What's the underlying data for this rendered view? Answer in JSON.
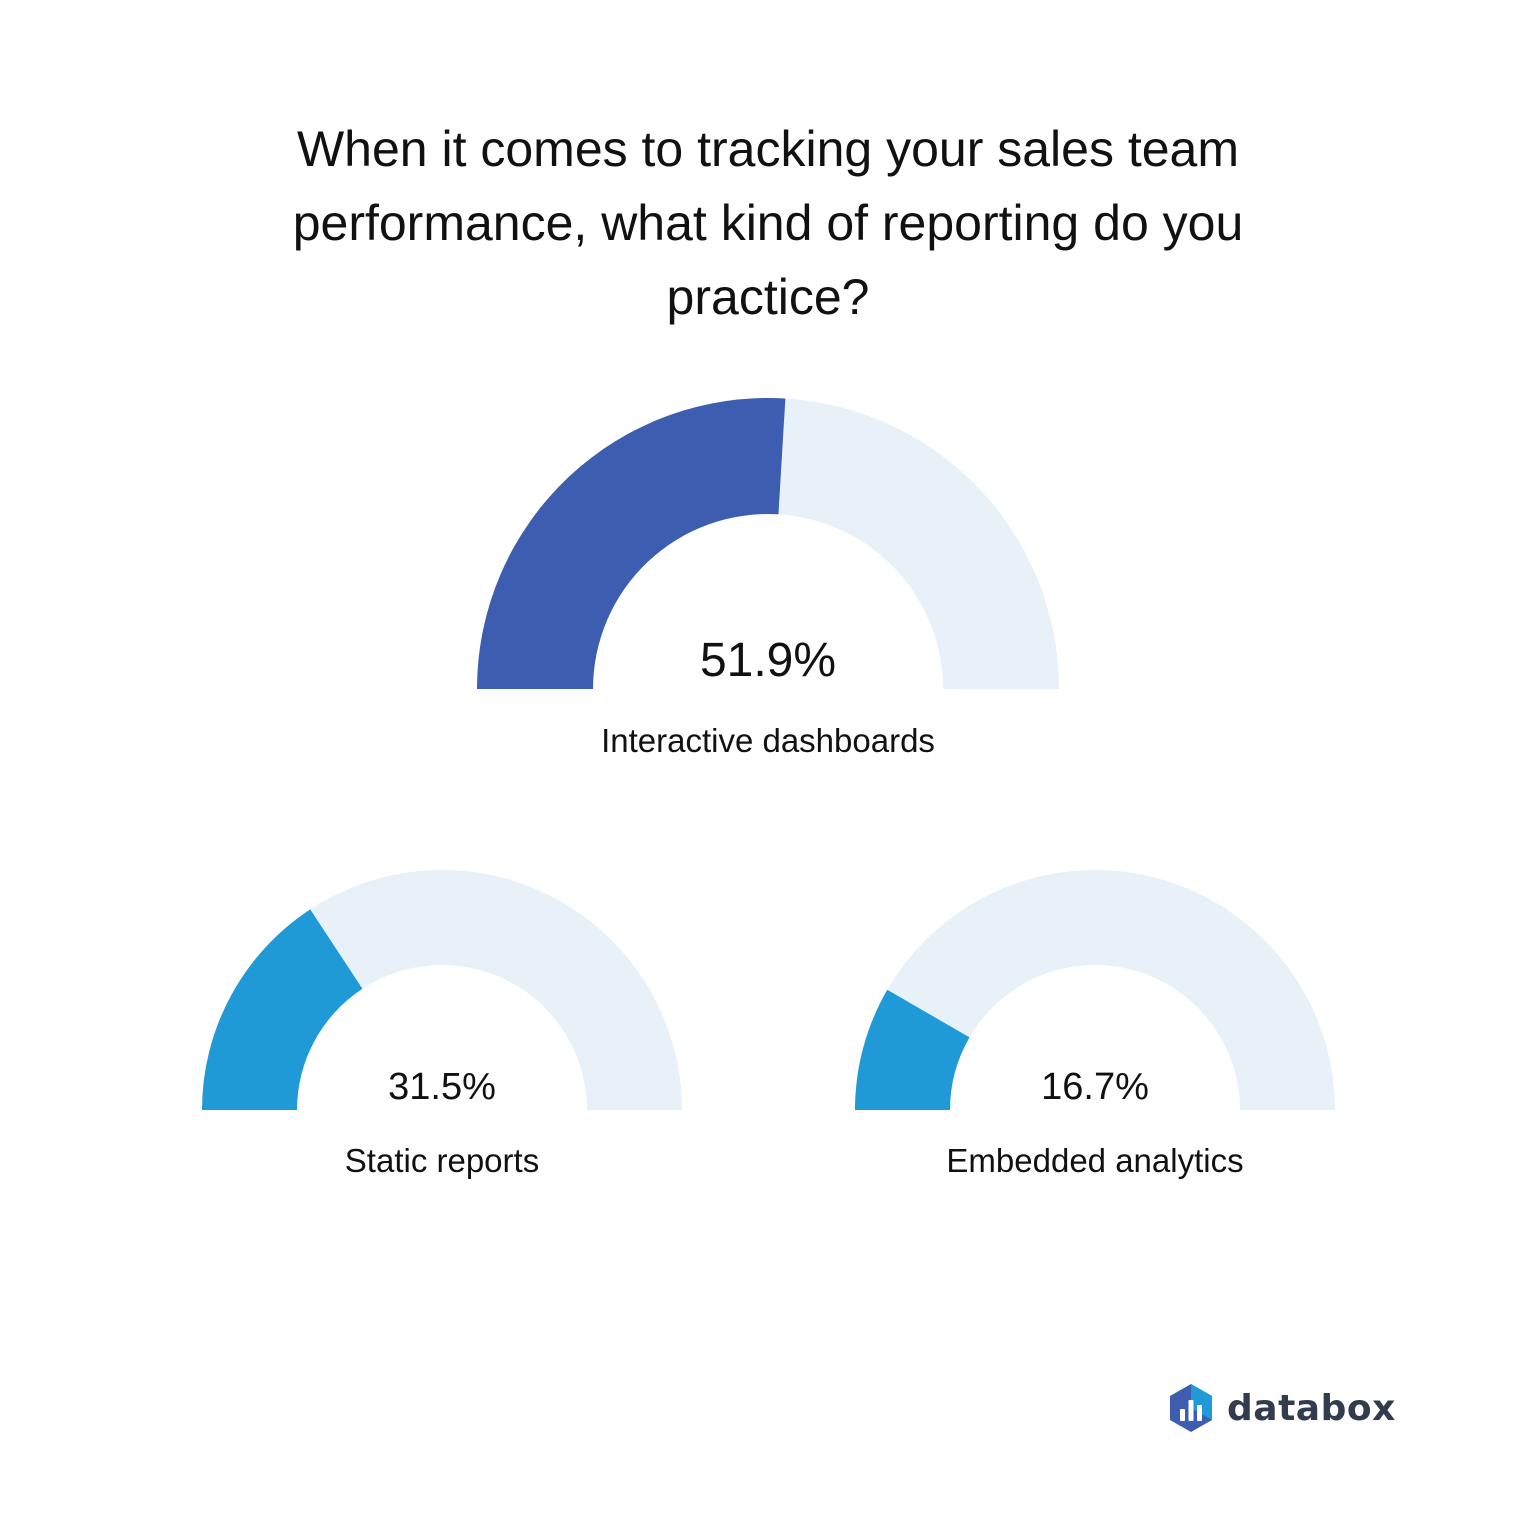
{
  "title": "When it comes to tracking your sales team performance, what kind of reporting do you practice?",
  "chart_data": [
    {
      "type": "gauge",
      "label": "Interactive dashboards",
      "value": 51.9,
      "value_text": "51.9%",
      "range": [
        0,
        100
      ],
      "color": "#3d5db0",
      "track_color": "#e8f1f7"
    },
    {
      "type": "gauge",
      "label": "Static reports",
      "value": 31.5,
      "value_text": "31.5%",
      "range": [
        0,
        100
      ],
      "color": "#1f9ad6",
      "track_color": "#e8f1f7"
    },
    {
      "type": "gauge",
      "label": "Embedded analytics",
      "value": 16.7,
      "value_text": "16.7%",
      "range": [
        0,
        100
      ],
      "color": "#1f9ad6",
      "track_color": "#e8f1f7"
    }
  ],
  "logo": {
    "wordmark": "databox",
    "icon": "databox-hexagon-bars-icon",
    "colors": [
      "#3d5db0",
      "#1f9ad6"
    ]
  }
}
